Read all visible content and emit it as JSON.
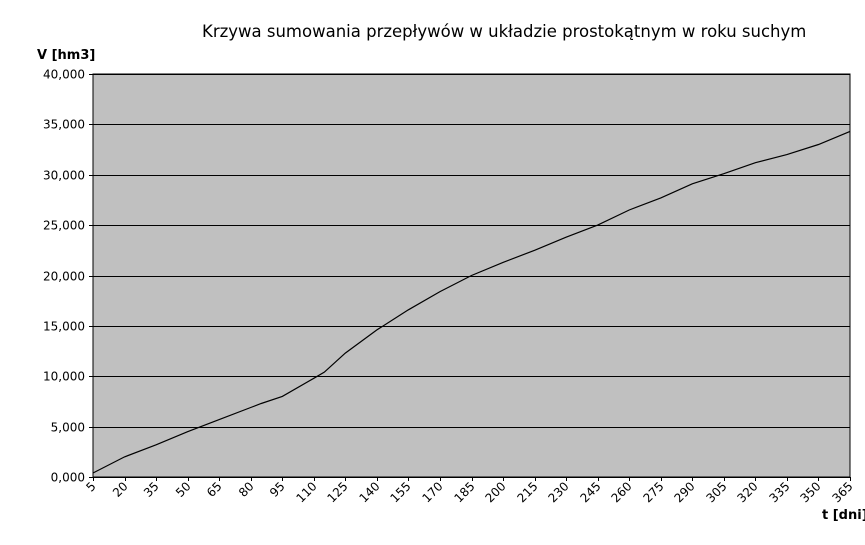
{
  "chart_data": {
    "type": "line",
    "title": "Krzywa sumowania przepływów w układzie prostokątnym w roku suchym",
    "ylabel": "V [hm3]",
    "xlabel": "t [dni]",
    "xlim": [
      5,
      365
    ],
    "ylim": [
      0,
      40000
    ],
    "x_ticks": [
      5,
      20,
      35,
      50,
      65,
      80,
      95,
      110,
      125,
      140,
      155,
      170,
      185,
      200,
      215,
      230,
      245,
      260,
      275,
      290,
      305,
      320,
      335,
      350,
      365
    ],
    "y_ticks": [
      0,
      5000,
      10000,
      15000,
      20000,
      25000,
      30000,
      35000,
      40000
    ],
    "y_tick_labels": [
      "0,000",
      "5,000",
      "10,000",
      "15,000",
      "20,000",
      "25,000",
      "30,000",
      "35,000",
      "40,000"
    ],
    "grid": "horizontal",
    "colors": {
      "plot_background": "#c0c0c0",
      "line": "#000000",
      "grid": "#000000"
    },
    "series": [
      {
        "x": [
          5,
          20,
          35,
          50,
          65,
          80,
          85,
          95,
          110,
          115,
          125,
          140,
          155,
          170,
          185,
          200,
          215,
          230,
          245,
          260,
          275,
          290,
          305,
          320,
          335,
          350,
          365
        ],
        "values": [
          400,
          2000,
          3200,
          4500,
          5700,
          6900,
          7300,
          8000,
          9800,
          10400,
          12300,
          14600,
          16600,
          18400,
          20000,
          21300,
          22500,
          23800,
          25000,
          26500,
          27700,
          29100,
          30100,
          31200,
          32000,
          33000,
          34300
        ]
      }
    ]
  }
}
